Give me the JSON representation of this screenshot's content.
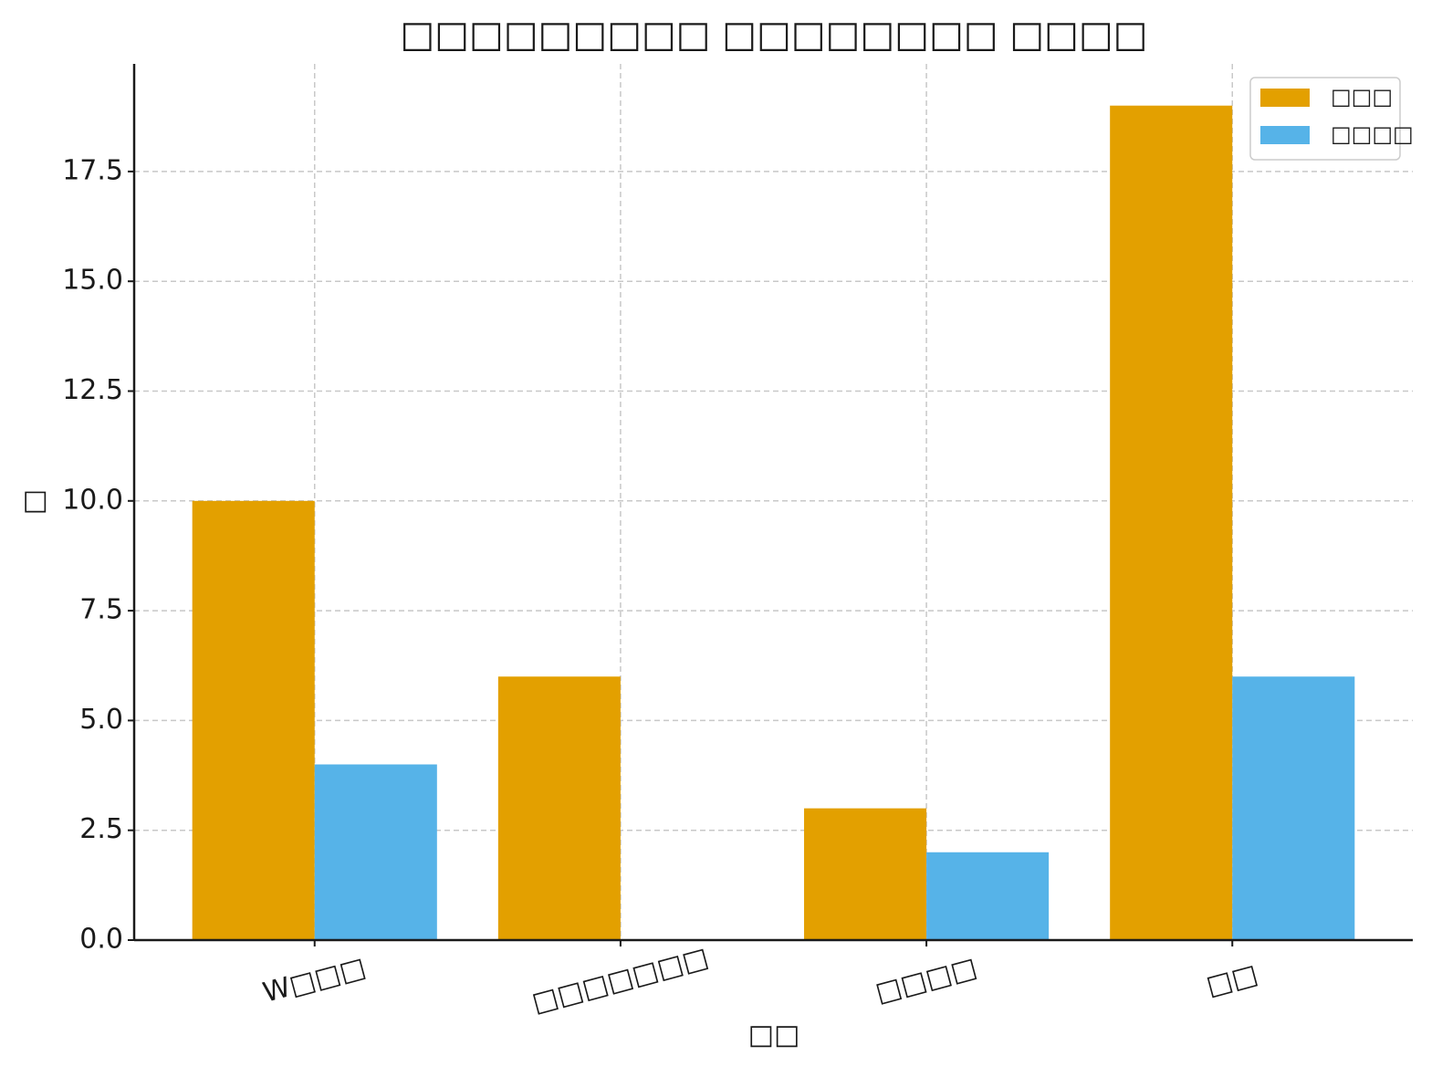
{
  "chart_data": {
    "type": "bar",
    "title": "□□□□□□□□□ □□□□□□□□ □□□□",
    "x_label": "□□",
    "y_label": "□",
    "categories": [
      "W□□□",
      "□□□□□□□",
      "□□□□",
      "□□"
    ],
    "series": [
      {
        "name": "□□□",
        "color": "#e3a000",
        "values": [
          10,
          6,
          3,
          19
        ]
      },
      {
        "name": "□□□□",
        "color": "#56b3e8",
        "values": [
          4,
          0,
          2,
          6
        ]
      }
    ],
    "ylim": [
      0,
      19.95
    ],
    "yticks": [
      {
        "value": 0,
        "label": "0.0"
      },
      2.5,
      {
        "value": 5,
        "label": "5.0"
      },
      7.5,
      {
        "value": 10,
        "label": "10.0"
      },
      12.5,
      {
        "value": 15,
        "label": "15.0"
      },
      17.5
    ],
    "grid": true,
    "legend": "upper right"
  }
}
